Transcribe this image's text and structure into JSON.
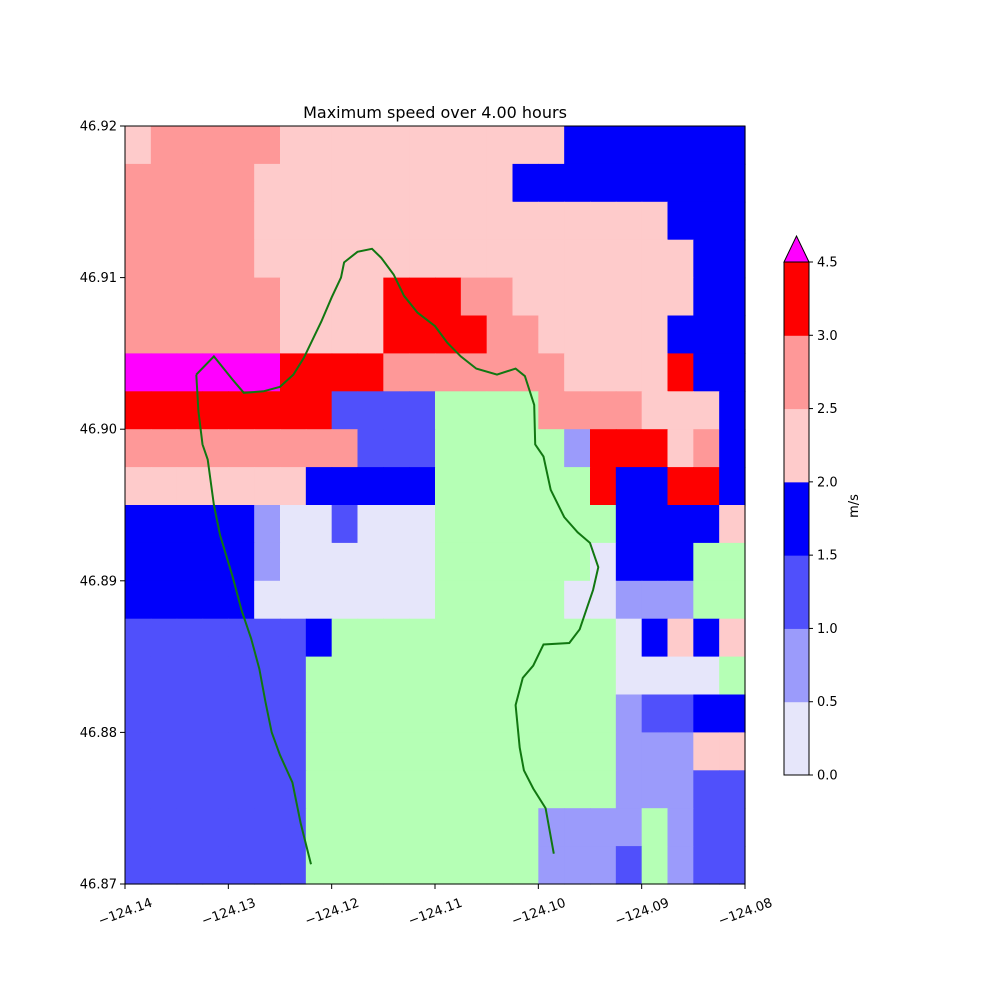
{
  "chart_data": {
    "type": "heatmap",
    "title": "Maximum speed over 4.00 hours",
    "xlabel": "",
    "ylabel": "",
    "xlim": [
      -124.14,
      -124.08
    ],
    "ylim": [
      46.87,
      46.92
    ],
    "xticks": [
      -124.14,
      -124.13,
      -124.12,
      -124.11,
      -124.1,
      -124.09,
      -124.08
    ],
    "xtick_labels": [
      "−124.14",
      "−124.13",
      "−124.12",
      "−124.11",
      "−124.10",
      "−124.09",
      "−124.08"
    ],
    "yticks": [
      46.87,
      46.88,
      46.89,
      46.9,
      46.91,
      46.92
    ],
    "ytick_labels": [
      "46.87",
      "46.88",
      "46.89",
      "46.90",
      "46.91",
      "46.92"
    ],
    "grid": false,
    "colorbar": {
      "label": "m/s",
      "extend": "max",
      "ticks": [
        0.0,
        0.5,
        1.0,
        1.5,
        2.0,
        2.5,
        3.0,
        4.5
      ],
      "tick_labels": [
        "0.0",
        "0.5",
        "1.0",
        "1.5",
        "2.0",
        "2.5",
        "3.0",
        "4.5"
      ],
      "bins": [
        {
          "from": 0.0,
          "to": 0.5,
          "color": "#e6e6fa"
        },
        {
          "from": 0.5,
          "to": 1.0,
          "color": "#9b9bfb"
        },
        {
          "from": 1.0,
          "to": 1.5,
          "color": "#5050fb"
        },
        {
          "from": 1.5,
          "to": 2.0,
          "color": "#0000fb"
        },
        {
          "from": 2.0,
          "to": 2.5,
          "color": "#fecbcb"
        },
        {
          "from": 2.5,
          "to": 3.0,
          "color": "#fe9898"
        },
        {
          "from": 3.0,
          "to": 4.5,
          "color": "#fe0000"
        }
      ],
      "over_color": "#ff00ff",
      "land_color": "#b5ffb5"
    },
    "grid_shape": {
      "rows": 20,
      "cols": 24
    },
    "color_key": {
      "L": "#b5ffb5",
      "0": "#e6e6fa",
      "1": "#9b9bfb",
      "2": "#5050fb",
      "3": "#0000fb",
      "4": "#fecbcb",
      "5": "#fe9898",
      "6": "#fe0000",
      "7": "#ff00ff"
    },
    "cells": [
      "455555444444444443333333",
      "555554444444444333333333",
      "555554444444444444444333",
      "555554444444444444444433",
      "555555444466655444444433",
      "555555444466665544444333",
      "777777666655555554444633",
      "666666662222LLLL55554443",
      "555555555222LLLLL1666453",
      "444444433333LLLLLL633663",
      "333331002000LLLLLLL33334",
      "333331000000LLLLLL0333LL",
      "333330000000LLLLL00111LL",
      "22222223LLLLLLLLLLL03434",
      "2222222LLLLLLLLLLLL0000L",
      "2222222LLLLLLLLLLLL12233",
      "2222222LLLLLLLLLLLL11144",
      "2222222LLLLLLLLLLLL11122",
      "2222222LLLLLLLLL1111L122",
      "2222222LLLLLLLLL1112L122"
    ],
    "coastline": [
      [
        -124.1331,
        46.9036
      ],
      [
        -124.1314,
        46.9048
      ],
      [
        -124.1295,
        46.9032
      ],
      [
        -124.1285,
        46.9024
      ],
      [
        -124.1266,
        46.9025
      ],
      [
        -124.125,
        46.9028
      ],
      [
        -124.1237,
        46.9036
      ],
      [
        -124.1227,
        46.9047
      ],
      [
        -124.121,
        46.9071
      ],
      [
        -124.12,
        46.9087
      ],
      [
        -124.1191,
        46.91
      ],
      [
        -124.1188,
        46.911
      ],
      [
        -124.1175,
        46.9117
      ],
      [
        -124.1161,
        46.9119
      ],
      [
        -124.1152,
        46.9113
      ],
      [
        -124.114,
        46.9102
      ],
      [
        -124.113,
        46.9088
      ],
      [
        -124.1117,
        46.9077
      ],
      [
        -124.11,
        46.9068
      ],
      [
        -124.1088,
        46.9057
      ],
      [
        -124.1075,
        46.9048
      ],
      [
        -124.106,
        46.904
      ],
      [
        -124.104,
        46.9036
      ],
      [
        -124.1022,
        46.904
      ],
      [
        -124.1013,
        46.9035
      ],
      [
        -124.1004,
        46.9016
      ],
      [
        -124.1003,
        46.899
      ],
      [
        -124.0995,
        46.8982
      ],
      [
        -124.0988,
        46.896
      ],
      [
        -124.0975,
        46.8942
      ],
      [
        -124.0962,
        46.8932
      ],
      [
        -124.095,
        46.8925
      ],
      [
        -124.0942,
        46.8909
      ],
      [
        -124.0947,
        46.8894
      ],
      [
        -124.0953,
        46.8882
      ],
      [
        -124.096,
        46.8868
      ],
      [
        -124.097,
        46.8859
      ],
      [
        -124.0995,
        46.8858
      ],
      [
        -124.1005,
        46.8844
      ],
      [
        -124.1015,
        46.8836
      ],
      [
        -124.1022,
        46.8818
      ],
      [
        -124.1018,
        46.879
      ],
      [
        -124.1014,
        46.8775
      ],
      [
        -124.1005,
        46.8763
      ],
      [
        -124.0993,
        46.875
      ],
      [
        -124.0985,
        46.872
      ]
    ],
    "coastline_west": [
      [
        -124.1331,
        46.9036
      ],
      [
        -124.1329,
        46.9012
      ],
      [
        -124.1325,
        46.899
      ],
      [
        -124.132,
        46.898
      ],
      [
        -124.1314,
        46.895
      ],
      [
        -124.1308,
        46.893
      ],
      [
        -124.1296,
        46.8903
      ],
      [
        -124.1287,
        46.888
      ],
      [
        -124.1278,
        46.8862
      ],
      [
        -124.127,
        46.8842
      ],
      [
        -124.1264,
        46.882
      ],
      [
        -124.1258,
        46.88
      ],
      [
        -124.125,
        46.8785
      ],
      [
        -124.1238,
        46.8767
      ],
      [
        -124.123,
        46.874
      ],
      [
        -124.122,
        46.8713
      ]
    ],
    "coastline_color": "#117711"
  }
}
